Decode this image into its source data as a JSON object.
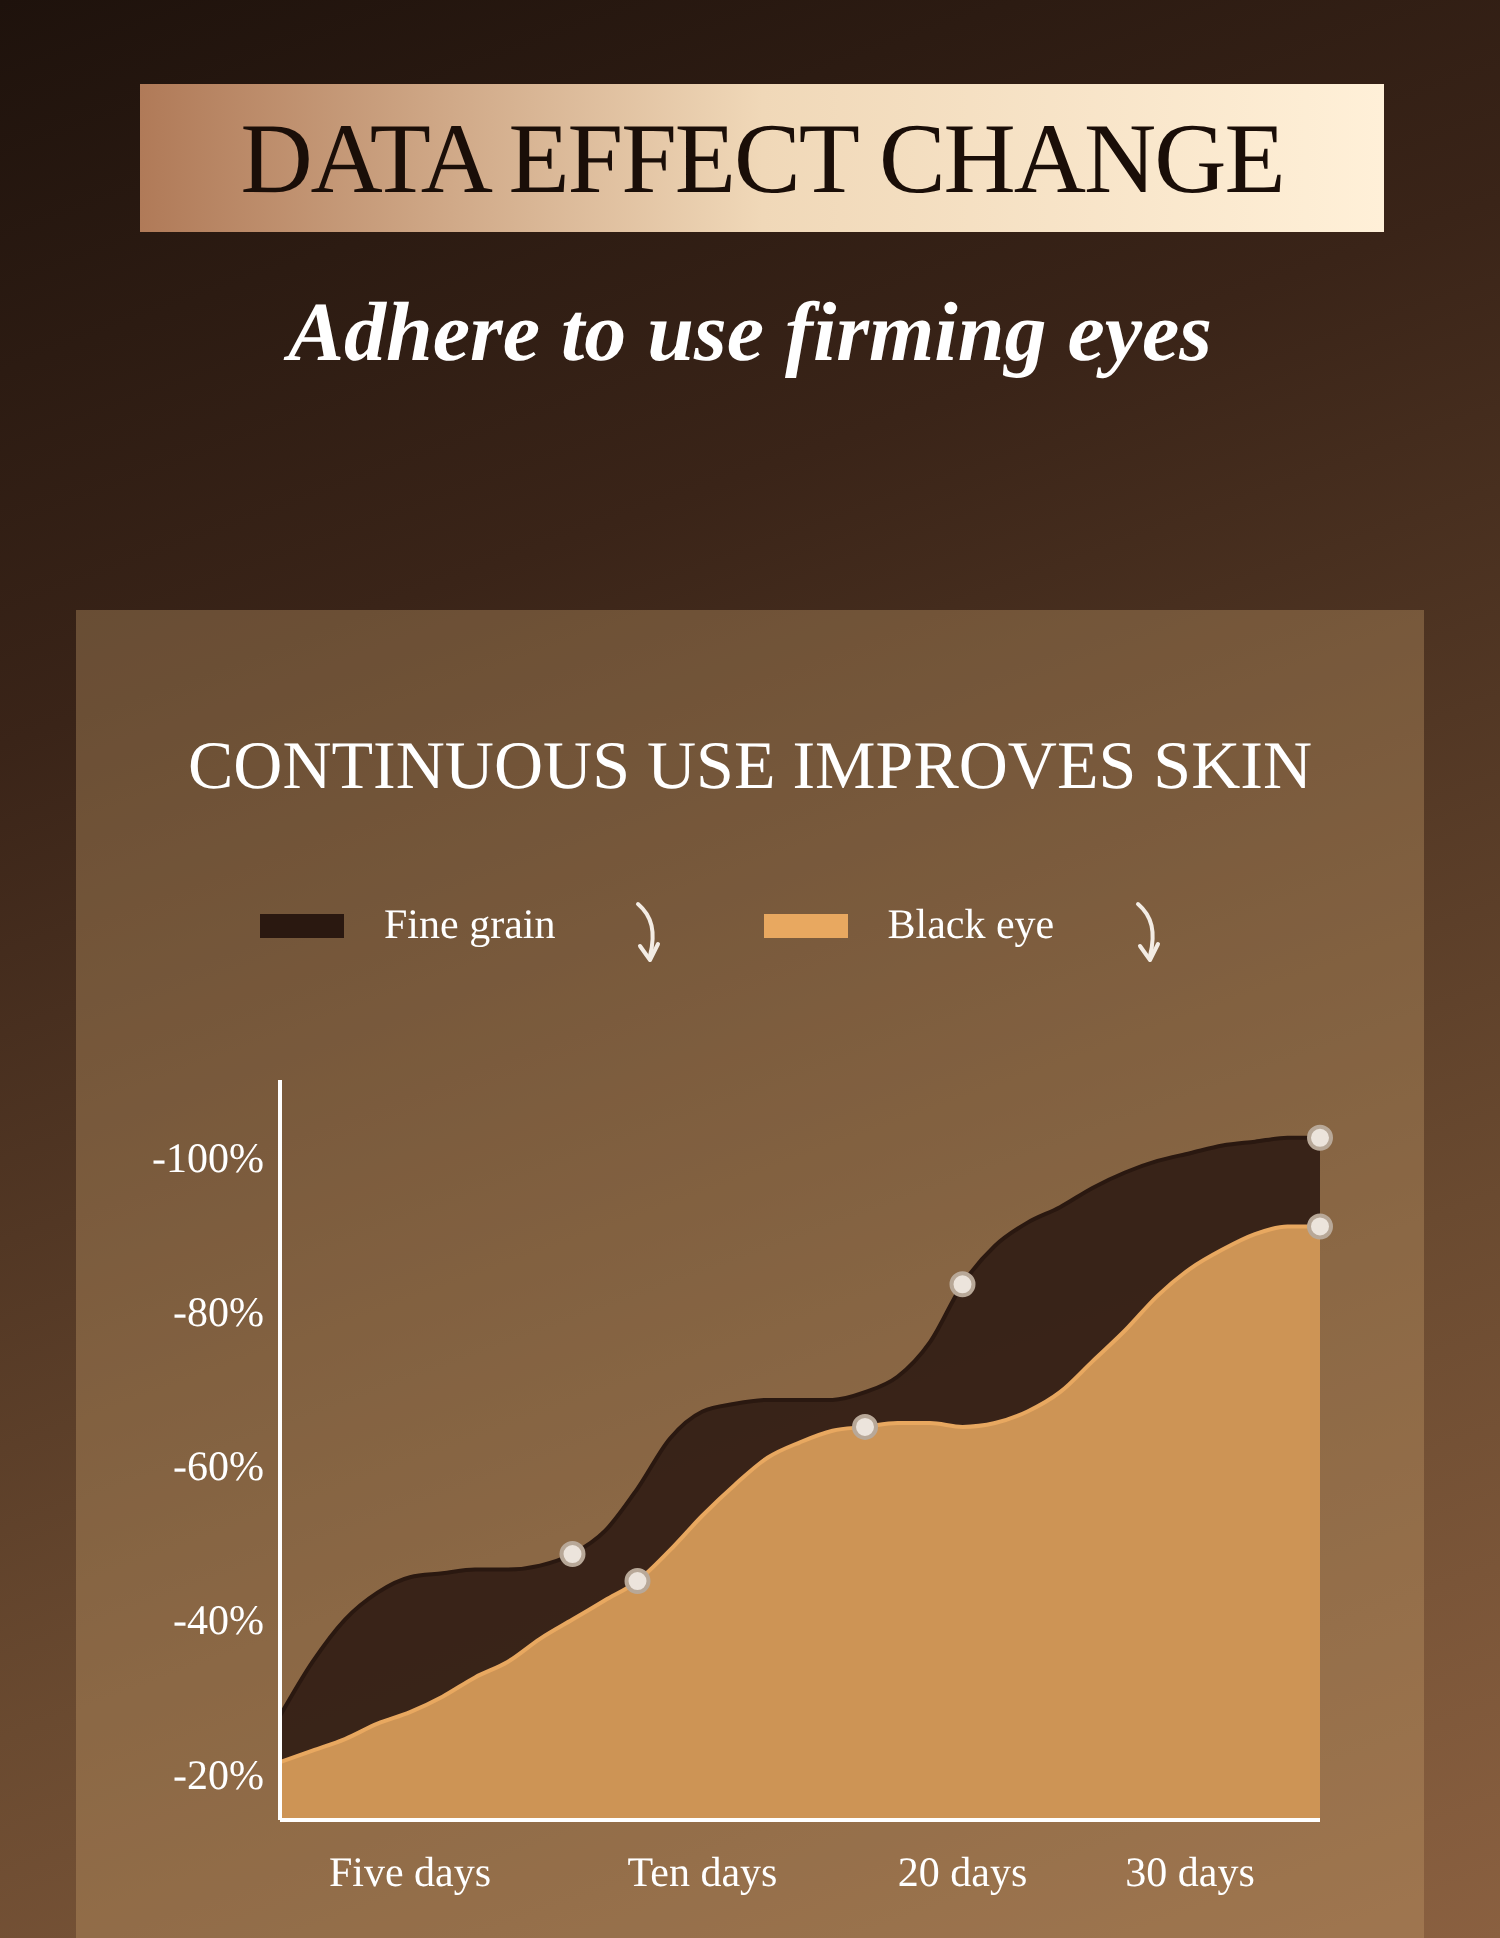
{
  "chart_data": {
    "type": "area",
    "title": "DATA EFFECT CHANGE",
    "subtitle": "Adhere to use firming eyes",
    "annotations": [
      "CONTINUOUS USE IMPROVES SKIN"
    ],
    "categories": [
      null,
      null,
      null,
      null,
      "Five days",
      null,
      null,
      null,
      null,
      null,
      null,
      null,
      null,
      "Ten days",
      null,
      null,
      null,
      null,
      null,
      null,
      null,
      "20 days",
      null,
      null,
      null,
      null,
      null,
      null,
      "30 days",
      null,
      null,
      null,
      null
    ],
    "ylim": [
      -14,
      -110
    ],
    "yticks": [
      {
        "value": -20,
        "label": "-20%"
      },
      {
        "value": -40,
        "label": "-40%"
      },
      {
        "value": -60,
        "label": "-60%"
      },
      {
        "value": -80,
        "label": "-80%"
      },
      {
        "value": -100,
        "label": "-100%"
      }
    ],
    "grid": false,
    "legend": "top left",
    "series": [
      {
        "name": "Fine grain",
        "color": "#2a1810",
        "values": [
          -27.5,
          -34.5,
          -40,
          -43.5,
          -45.5,
          -46,
          -46.5,
          -46.5,
          -47,
          -48.5,
          -51.5,
          -57,
          -63.5,
          -67,
          -68,
          -68.5,
          -68.5,
          -68.5,
          -69.5,
          -71.5,
          -76,
          -83.5,
          -88.5,
          -91.5,
          -93.5,
          -96,
          -98,
          -99.5,
          -100.5,
          -101.5,
          -102,
          -102.5,
          -102.5
        ]
      },
      {
        "name": "Black eye",
        "color": "#e8a860",
        "values": [
          -21.5,
          -23,
          -24.5,
          -26.5,
          -28,
          -30,
          -32.5,
          -34.5,
          -37.5,
          -40,
          -42.5,
          -45,
          -49,
          -53.5,
          -57.5,
          -61,
          -63,
          -64.5,
          -65,
          -65.5,
          -65.5,
          -65,
          -65.5,
          -67,
          -69.5,
          -73.5,
          -77.5,
          -82,
          -85.5,
          -88,
          -90,
          -91,
          -91
        ]
      },
      {
        "type": "scatter",
        "color": "#ece4dc",
        "values": [
          null,
          null,
          null,
          null,
          null,
          null,
          null,
          null,
          null,
          -48.5,
          null,
          null,
          null,
          null,
          null,
          null,
          null,
          null,
          null,
          null,
          null,
          -83.5,
          null,
          null,
          null,
          null,
          null,
          null,
          null,
          null,
          null,
          null,
          -102.5
        ]
      },
      {
        "type": "scatter",
        "color": "#ece4dc",
        "values": [
          null,
          null,
          null,
          null,
          null,
          null,
          null,
          null,
          null,
          null,
          null,
          -45,
          null,
          null,
          null,
          null,
          null,
          null,
          -65,
          null,
          null,
          null,
          null,
          null,
          null,
          null,
          null,
          null,
          null,
          null,
          null,
          null,
          -91
        ]
      }
    ]
  }
}
